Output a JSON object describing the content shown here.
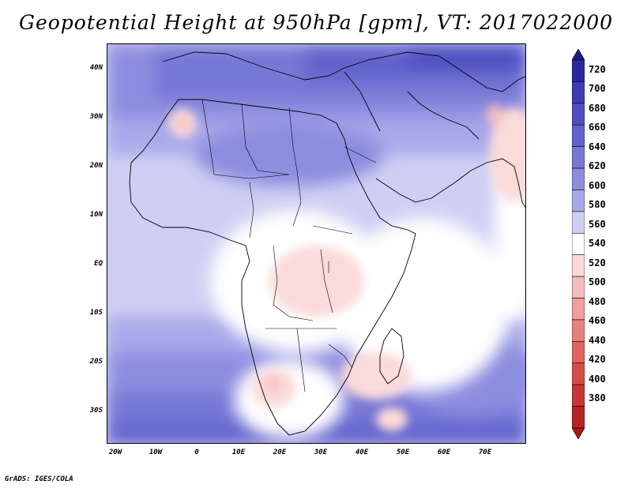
{
  "title": "Geopotential Height at 950hPa [gpm], VT: 2017022000",
  "credit": "GrADS: IGES/COLA",
  "map": {
    "lat_labels": [
      "40N",
      "30N",
      "20N",
      "10N",
      "EQ",
      "10S",
      "20S",
      "30S"
    ],
    "lon_labels": [
      "20W",
      "10W",
      "0",
      "10E",
      "20E",
      "30E",
      "40E",
      "50E",
      "60E",
      "70E"
    ]
  },
  "colorbar": {
    "levels": [
      "720",
      "700",
      "680",
      "660",
      "640",
      "620",
      "600",
      "580",
      "560",
      "540",
      "520",
      "500",
      "480",
      "460",
      "440",
      "420",
      "400",
      "380"
    ],
    "colors": [
      "#1b1b8a",
      "#2a2aa0",
      "#3c3cb4",
      "#4e4ec2",
      "#6262cc",
      "#7777d6",
      "#8d8de0",
      "#a9a9ea",
      "#cfcff4",
      "#ffffff",
      "#fbdada",
      "#f6bcbc",
      "#f09e9e",
      "#e98080",
      "#e06464",
      "#d64a4a",
      "#c93636",
      "#b82424",
      "#a81818"
    ]
  }
}
